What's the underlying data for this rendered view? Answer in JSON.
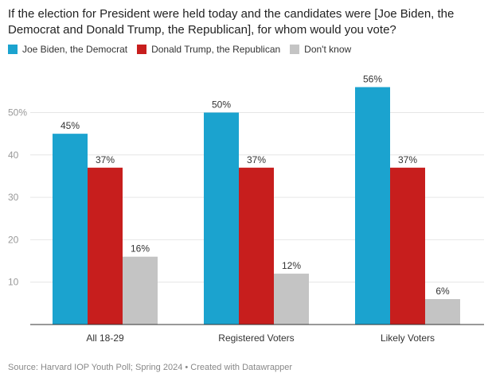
{
  "title": "If the election for President were held today and the candidates were [Joe Biden, the Democrat and Donald Trump, the Republican], for whom would you vote?",
  "footer": "Source: Harvard IOP Youth Poll; Spring 2024 • Created with Datawrapper",
  "chart_data": {
    "type": "bar",
    "categories": [
      "All 18-29",
      "Registered Voters",
      "Likely Voters"
    ],
    "series": [
      {
        "name": "Joe Biden, the Democrat",
        "values": [
          45,
          50,
          56
        ],
        "color": "#1ba3cf"
      },
      {
        "name": "Donald Trump, the Republican",
        "values": [
          37,
          37,
          37
        ],
        "color": "#c71e1d"
      },
      {
        "name": "Don't know",
        "values": [
          16,
          12,
          6
        ],
        "color": "#c4c4c4"
      }
    ],
    "value_suffix": "%",
    "yticks": [
      {
        "value": 10,
        "label": "10"
      },
      {
        "value": 20,
        "label": "20"
      },
      {
        "value": 30,
        "label": "30"
      },
      {
        "value": 40,
        "label": "40"
      },
      {
        "value": 50,
        "label": "50%"
      }
    ],
    "ylim": [
      0,
      60
    ],
    "grid": true,
    "legend_position": "top-left"
  }
}
